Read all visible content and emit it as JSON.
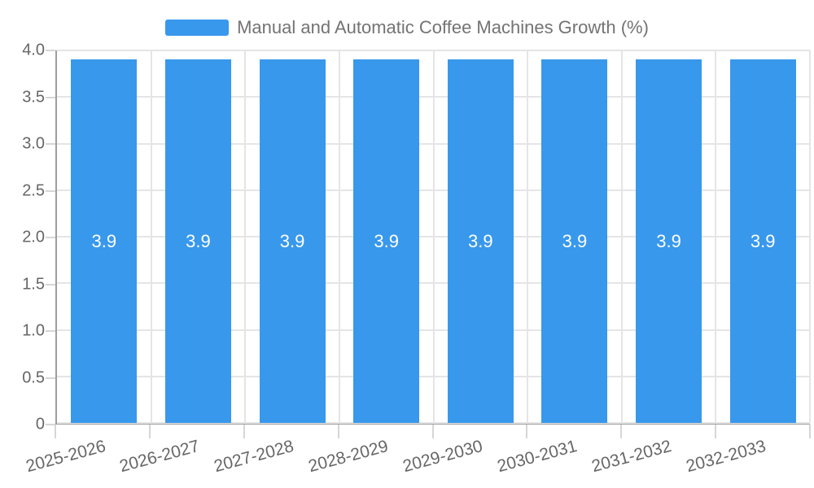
{
  "legend": {
    "label": "Manual and Automatic Coffee Machines Growth (%)",
    "swatch_color": "#3898ec"
  },
  "chart_data": {
    "type": "bar",
    "title": "Manual and Automatic Coffee Machines Growth (%)",
    "categories": [
      "2025-2026",
      "2026-2027",
      "2027-2028",
      "2028-2029",
      "2029-2030",
      "2030-2031",
      "2031-2032",
      "2032-2033"
    ],
    "values": [
      3.9,
      3.9,
      3.9,
      3.9,
      3.9,
      3.9,
      3.9,
      3.9
    ],
    "value_labels": [
      "3.9",
      "3.9",
      "3.9",
      "3.9",
      "3.9",
      "3.9",
      "3.9",
      "3.9"
    ],
    "y_tick_labels": [
      "4.0",
      "3.5",
      "3.0",
      "2.5",
      "2.0",
      "1.5",
      "1.0",
      "0.5",
      "0"
    ],
    "ylim": [
      0,
      4
    ],
    "xlabel": "",
    "ylabel": "",
    "grid": true,
    "legend_position": "top-center",
    "bar_color": "#3898ec",
    "value_label_color": "#ffffff",
    "axis_label_color": "#666666"
  }
}
